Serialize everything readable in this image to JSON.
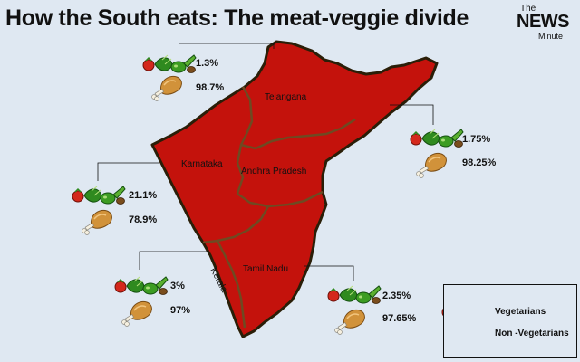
{
  "title": "How the South eats: The meat-veggie divide",
  "logo": {
    "line1": "The",
    "line2": "NEWS",
    "line3": "Minute"
  },
  "map": {
    "fill_color": "#c4120c",
    "border_color": "#3a2a10",
    "background": "#dfe8f2"
  },
  "states": [
    {
      "name": "Telangana",
      "vegetarian_pct": "1.3%",
      "non_vegetarian_pct": "98.7%"
    },
    {
      "name": "Andhra Pradesh",
      "vegetarian_pct": "1.75%",
      "non_vegetarian_pct": "98.25%"
    },
    {
      "name": "Karnataka",
      "vegetarian_pct": "21.1%",
      "non_vegetarian_pct": "78.9%"
    },
    {
      "name": "Kerala",
      "vegetarian_pct": "3%",
      "non_vegetarian_pct": "97%"
    },
    {
      "name": "Tamil Nadu",
      "vegetarian_pct": "2.35%",
      "non_vegetarian_pct": "97.65%"
    }
  ],
  "legend": {
    "vegetarian": "Vegetarians",
    "non_vegetarian": "Non -Vegetarians"
  },
  "icons": {
    "vegetarian": "vegetables-icon",
    "non_vegetarian": "chicken-leg-icon"
  }
}
